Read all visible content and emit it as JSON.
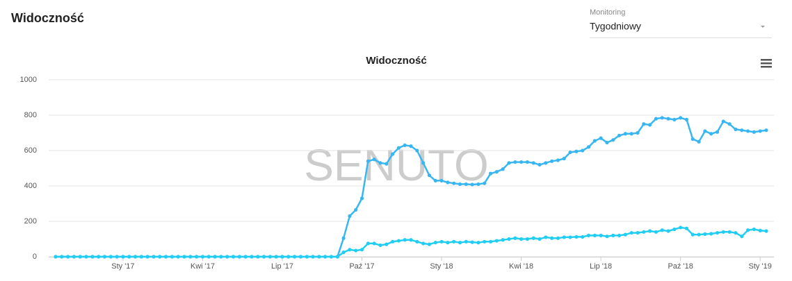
{
  "header": {
    "title": "Widoczność"
  },
  "monitoring": {
    "label": "Monitoring",
    "value": "Tygodniowy"
  },
  "chart_data": {
    "type": "line",
    "title": "Widoczność",
    "watermark": "SENUTO",
    "categories": [
      null,
      null,
      null,
      null,
      null,
      null,
      null,
      null,
      null,
      null,
      null,
      "Sty '17",
      null,
      null,
      null,
      null,
      null,
      null,
      null,
      null,
      null,
      null,
      null,
      null,
      "Kwi '17",
      null,
      null,
      null,
      null,
      null,
      null,
      null,
      null,
      null,
      null,
      null,
      null,
      "Lip '17",
      null,
      null,
      null,
      null,
      null,
      null,
      null,
      null,
      null,
      null,
      null,
      null,
      "Paź '17",
      null,
      null,
      null,
      null,
      null,
      null,
      null,
      null,
      null,
      null,
      null,
      null,
      "Sty '18",
      null,
      null,
      null,
      null,
      null,
      null,
      null,
      null,
      null,
      null,
      null,
      null,
      "Kwi '18",
      null,
      null,
      null,
      null,
      null,
      null,
      null,
      null,
      null,
      null,
      null,
      null,
      "Lip '18",
      null,
      null,
      null,
      null,
      null,
      null,
      null,
      null,
      null,
      null,
      null,
      null,
      "Paź '18",
      null,
      null,
      null,
      null,
      null,
      null,
      null,
      null,
      null,
      null,
      null,
      null,
      "Sty '19",
      null
    ],
    "series": [
      {
        "color": "#38b6f2",
        "values": [
          0,
          0,
          0,
          0,
          0,
          0,
          0,
          0,
          0,
          0,
          0,
          0,
          0,
          0,
          0,
          0,
          0,
          0,
          0,
          0,
          0,
          0,
          0,
          0,
          0,
          0,
          0,
          0,
          0,
          0,
          0,
          0,
          0,
          0,
          0,
          0,
          0,
          0,
          0,
          0,
          0,
          0,
          0,
          0,
          0,
          0,
          0,
          105,
          230,
          265,
          330,
          540,
          550,
          530,
          525,
          580,
          615,
          630,
          625,
          600,
          530,
          460,
          430,
          430,
          420,
          415,
          410,
          410,
          408,
          410,
          415,
          470,
          480,
          495,
          530,
          535,
          535,
          535,
          530,
          520,
          530,
          540,
          545,
          555,
          590,
          595,
          600,
          620,
          655,
          670,
          645,
          660,
          685,
          695,
          695,
          700,
          750,
          745,
          780,
          785,
          780,
          775,
          785,
          775,
          665,
          650,
          710,
          695,
          705,
          765,
          750,
          720,
          715,
          710,
          705,
          710,
          715
        ]
      },
      {
        "color": "#22cdf3",
        "values": [
          0,
          0,
          0,
          0,
          0,
          0,
          0,
          0,
          0,
          0,
          0,
          0,
          0,
          0,
          0,
          0,
          0,
          0,
          0,
          0,
          0,
          0,
          0,
          0,
          0,
          0,
          0,
          0,
          0,
          0,
          0,
          0,
          0,
          0,
          0,
          0,
          0,
          0,
          0,
          0,
          0,
          0,
          0,
          0,
          0,
          0,
          0,
          25,
          40,
          35,
          40,
          75,
          75,
          65,
          70,
          85,
          90,
          95,
          95,
          85,
          75,
          70,
          80,
          85,
          80,
          85,
          80,
          85,
          82,
          80,
          85,
          85,
          90,
          95,
          100,
          105,
          100,
          100,
          105,
          100,
          110,
          105,
          105,
          110,
          110,
          112,
          112,
          120,
          120,
          120,
          115,
          120,
          120,
          125,
          135,
          135,
          140,
          145,
          140,
          150,
          145,
          155,
          165,
          160,
          125,
          125,
          128,
          130,
          135,
          140,
          140,
          135,
          115,
          150,
          155,
          148,
          145
        ]
      }
    ],
    "ylim": [
      0,
      1000
    ],
    "yticks": [
      0,
      200,
      400,
      600,
      800,
      1000
    ],
    "grid": true
  }
}
